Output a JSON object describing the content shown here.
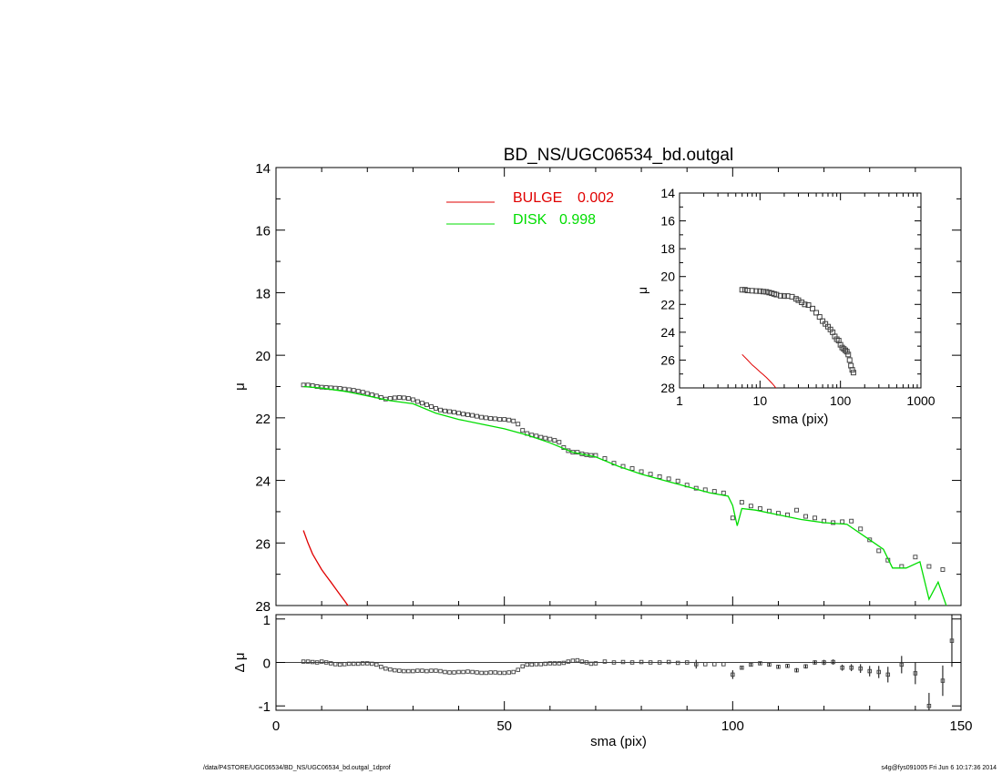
{
  "chart_data": [
    {
      "id": "main",
      "type": "scatter",
      "title": "BD_NS/UGC06534_bd.outgal",
      "xlabel": "",
      "ylabel": "μ",
      "xlim": [
        0,
        150
      ],
      "ylim": [
        28,
        14
      ],
      "y_inverted": true,
      "xticks": [],
      "yticks": [
        14,
        16,
        18,
        20,
        22,
        24,
        26,
        28
      ],
      "legend": {
        "placement": "top-center",
        "entries": [
          {
            "label": "BULGE",
            "value": "0.002",
            "color": "#e00000"
          },
          {
            "label": "DISK",
            "value": "0.998",
            "color": "#00dd00"
          }
        ]
      },
      "series": [
        {
          "kind": "points",
          "color": "#404040",
          "x": [
            6,
            7,
            8,
            9,
            10,
            11,
            12,
            13,
            14,
            15,
            16,
            17,
            18,
            19,
            20,
            21,
            22,
            23,
            24,
            25,
            26,
            27,
            28,
            29,
            30,
            31,
            32,
            33,
            34,
            35,
            36,
            37,
            38,
            39,
            40,
            41,
            42,
            43,
            44,
            45,
            46,
            47,
            48,
            49,
            50,
            51,
            52,
            53,
            54,
            55,
            56,
            57,
            58,
            59,
            60,
            61,
            62,
            63,
            64,
            65,
            66,
            67,
            68,
            69,
            70,
            72,
            74,
            76,
            78,
            80,
            82,
            84,
            86,
            88,
            90,
            92,
            94,
            96,
            98,
            100,
            102,
            104,
            106,
            108,
            110,
            112,
            114,
            116,
            118,
            120,
            122,
            124,
            126,
            128,
            130,
            132,
            134,
            137,
            140,
            143,
            146
          ],
          "y": [
            20.95,
            20.95,
            20.97,
            21.0,
            21.02,
            21.03,
            21.04,
            21.05,
            21.06,
            21.08,
            21.1,
            21.12,
            21.15,
            21.18,
            21.22,
            21.26,
            21.3,
            21.35,
            21.4,
            21.38,
            21.36,
            21.35,
            21.36,
            21.38,
            21.42,
            21.48,
            21.53,
            21.58,
            21.64,
            21.7,
            21.75,
            21.78,
            21.8,
            21.82,
            21.85,
            21.88,
            21.9,
            21.92,
            21.95,
            21.98,
            22.0,
            22.02,
            22.03,
            22.05,
            22.05,
            22.07,
            22.1,
            22.2,
            22.4,
            22.5,
            22.55,
            22.58,
            22.62,
            22.65,
            22.68,
            22.72,
            22.78,
            22.95,
            23.05,
            23.1,
            23.1,
            23.15,
            23.18,
            23.2,
            23.2,
            23.3,
            23.45,
            23.55,
            23.62,
            23.72,
            23.8,
            23.88,
            23.95,
            24.02,
            24.15,
            24.25,
            24.3,
            24.35,
            24.4,
            25.2,
            24.7,
            24.82,
            24.9,
            24.98,
            25.05,
            25.1,
            24.95,
            25.15,
            25.2,
            25.3,
            25.35,
            25.32,
            25.3,
            25.55,
            25.9,
            26.25,
            26.55,
            26.75,
            26.45,
            26.75,
            26.85
          ]
        },
        {
          "kind": "line",
          "name": "DISK",
          "color": "#00dd00",
          "x": [
            6,
            10,
            15,
            20,
            25,
            30,
            35,
            40,
            45,
            50,
            55,
            60,
            65,
            70,
            75,
            80,
            85,
            90,
            95,
            99,
            100,
            101,
            102,
            105,
            110,
            115,
            120,
            125,
            130,
            133,
            135,
            138,
            141,
            143,
            145,
            147
          ],
          "y": [
            21.0,
            21.05,
            21.15,
            21.3,
            21.45,
            21.55,
            21.85,
            22.05,
            22.2,
            22.35,
            22.55,
            22.8,
            23.1,
            23.25,
            23.55,
            23.8,
            24.0,
            24.2,
            24.4,
            24.5,
            24.8,
            25.45,
            24.9,
            24.95,
            25.1,
            25.25,
            25.35,
            25.4,
            25.9,
            26.2,
            26.8,
            26.8,
            26.6,
            27.8,
            27.25,
            28.1
          ]
        },
        {
          "kind": "line",
          "name": "BULGE",
          "color": "#e00000",
          "x": [
            6,
            7,
            8,
            9,
            10,
            11,
            12,
            13,
            14,
            15,
            16
          ],
          "y": [
            25.6,
            26.0,
            26.35,
            26.6,
            26.85,
            27.05,
            27.25,
            27.45,
            27.65,
            27.85,
            28.05
          ]
        }
      ]
    },
    {
      "id": "inset",
      "type": "scatter",
      "xlabel": "sma (pix)",
      "ylabel": "μ",
      "xscale": "log",
      "xlim": [
        1,
        1000
      ],
      "ylim": [
        28,
        14
      ],
      "y_inverted": true,
      "xticks": [
        1,
        10,
        100,
        1000
      ],
      "yticks": [
        14,
        16,
        18,
        20,
        22,
        24,
        26,
        28
      ],
      "series": [
        {
          "kind": "points",
          "color": "#404040",
          "x": [
            6,
            6.5,
            7,
            8,
            9,
            10,
            11,
            12,
            13,
            14,
            15,
            16,
            18,
            20,
            22,
            25,
            28,
            30,
            33,
            36,
            40,
            45,
            50,
            55,
            60,
            65,
            70,
            75,
            80,
            85,
            90,
            95,
            100,
            105,
            110,
            115,
            120,
            125,
            130,
            135,
            140,
            145
          ],
          "y": [
            20.95,
            20.95,
            21.0,
            21.02,
            21.04,
            21.05,
            21.08,
            21.1,
            21.15,
            21.2,
            21.25,
            21.3,
            21.38,
            21.4,
            21.4,
            21.45,
            21.6,
            21.7,
            21.85,
            22.0,
            22.05,
            22.3,
            22.6,
            22.9,
            23.2,
            23.4,
            23.6,
            23.8,
            24.0,
            24.3,
            24.5,
            24.6,
            24.9,
            25.1,
            25.2,
            25.3,
            25.4,
            25.6,
            26.0,
            26.4,
            26.7,
            26.9
          ]
        },
        {
          "kind": "line",
          "name": "BULGE",
          "color": "#e00000",
          "x": [
            6,
            7,
            8,
            9,
            10,
            11,
            12,
            13,
            14,
            15,
            16
          ],
          "y": [
            25.6,
            26.0,
            26.35,
            26.6,
            26.85,
            27.05,
            27.25,
            27.45,
            27.65,
            27.85,
            28.05
          ]
        }
      ]
    },
    {
      "id": "residual",
      "type": "scatter",
      "xlabel": "sma (pix)",
      "ylabel": "Δ μ",
      "xlim": [
        0,
        150
      ],
      "ylim": [
        -1.1,
        1.1
      ],
      "xticks": [
        0,
        50,
        100,
        150
      ],
      "yticks": [
        -1,
        0,
        1
      ],
      "series": [
        {
          "kind": "points",
          "color": "#404040",
          "x": [
            6,
            7,
            8,
            9,
            10,
            11,
            12,
            13,
            14,
            15,
            16,
            17,
            18,
            19,
            20,
            21,
            22,
            23,
            24,
            25,
            26,
            27,
            28,
            29,
            30,
            31,
            32,
            33,
            34,
            35,
            36,
            37,
            38,
            39,
            40,
            41,
            42,
            43,
            44,
            45,
            46,
            47,
            48,
            49,
            50,
            51,
            52,
            53,
            54,
            55,
            56,
            57,
            58,
            59,
            60,
            61,
            62,
            63,
            64,
            65,
            66,
            67,
            68,
            69,
            70,
            72,
            74,
            76,
            78,
            80,
            82,
            84,
            86,
            88,
            90,
            92,
            94,
            96,
            98,
            100,
            102,
            104,
            106,
            108,
            110,
            112,
            114,
            116,
            118,
            120,
            122,
            124,
            126,
            128,
            130,
            132,
            134,
            137,
            140,
            143,
            146,
            148
          ],
          "y": [
            0.02,
            0.02,
            0.01,
            0.0,
            0.02,
            0.0,
            -0.02,
            -0.04,
            -0.05,
            -0.04,
            -0.03,
            -0.03,
            -0.03,
            -0.02,
            -0.02,
            -0.03,
            -0.05,
            -0.1,
            -0.14,
            -0.16,
            -0.18,
            -0.19,
            -0.2,
            -0.2,
            -0.2,
            -0.19,
            -0.19,
            -0.2,
            -0.19,
            -0.19,
            -0.2,
            -0.22,
            -0.23,
            -0.23,
            -0.22,
            -0.22,
            -0.21,
            -0.22,
            -0.23,
            -0.24,
            -0.24,
            -0.23,
            -0.23,
            -0.24,
            -0.24,
            -0.23,
            -0.22,
            -0.17,
            -0.09,
            -0.05,
            -0.05,
            -0.04,
            -0.04,
            -0.03,
            -0.02,
            -0.02,
            -0.02,
            -0.01,
            0.02,
            0.04,
            0.05,
            0.02,
            0.0,
            -0.03,
            -0.02,
            0.02,
            0.0,
            0.01,
            0.0,
            0.01,
            0.0,
            0.0,
            0.01,
            -0.01,
            0.0,
            -0.04,
            -0.04,
            -0.04,
            -0.04,
            -0.28,
            -0.12,
            -0.05,
            -0.02,
            -0.05,
            -0.1,
            -0.08,
            -0.18,
            -0.09,
            0.0,
            0.0,
            0.01,
            -0.12,
            -0.12,
            -0.14,
            -0.2,
            -0.22,
            -0.28,
            -0.05,
            -0.25,
            -1.0,
            -0.42,
            0.5
          ],
          "err": [
            0,
            0,
            0,
            0,
            0,
            0,
            0,
            0,
            0,
            0,
            0,
            0,
            0,
            0,
            0,
            0,
            0,
            0,
            0,
            0,
            0,
            0,
            0,
            0,
            0,
            0,
            0,
            0,
            0,
            0,
            0,
            0,
            0,
            0,
            0,
            0,
            0,
            0,
            0,
            0,
            0,
            0,
            0,
            0,
            0,
            0,
            0,
            0,
            0,
            0,
            0,
            0,
            0,
            0,
            0,
            0,
            0,
            0,
            0,
            0,
            0,
            0,
            0,
            0,
            0,
            0,
            0,
            0,
            0,
            0,
            0,
            0,
            0,
            0,
            0,
            0.1,
            0,
            0,
            0,
            0.1,
            0.03,
            0.03,
            0.03,
            0.04,
            0.04,
            0.04,
            0.05,
            0.05,
            0.05,
            0.06,
            0.06,
            0.07,
            0.08,
            0.1,
            0.12,
            0.14,
            0.18,
            0.2,
            0.25,
            0.3,
            0.35,
            0.6
          ]
        }
      ]
    }
  ],
  "footer": {
    "left": "/data/P4STORE/UGC06534/BD_NS/UGC06534_bd.outgal_1dprof",
    "right": "s4g@fys091005  Fri Jun  6 10:17:36 2014"
  }
}
